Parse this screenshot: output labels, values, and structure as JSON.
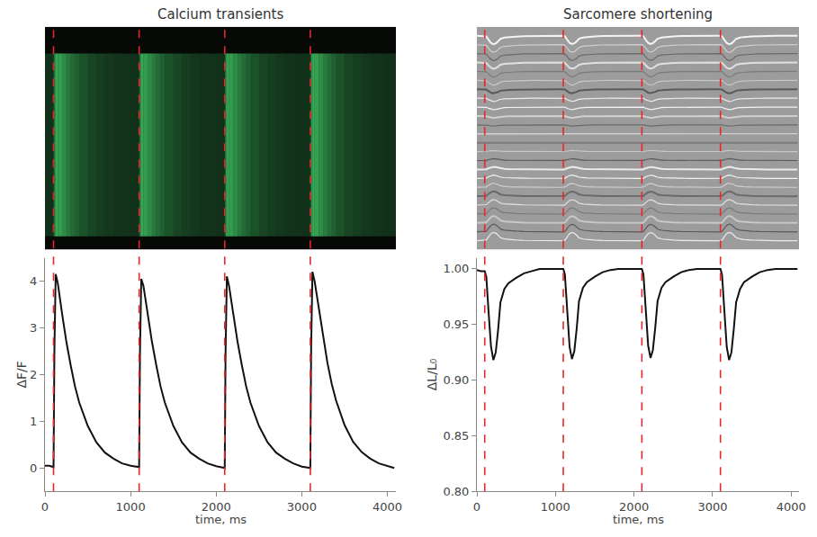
{
  "chart_data": [
    {
      "type": "line",
      "title": "Calcium transients",
      "xlabel": "time, ms",
      "ylabel": "ΔF/F",
      "color": "#111111",
      "x": [
        0,
        50,
        100,
        110,
        125,
        150,
        200,
        250,
        300,
        350,
        400,
        500,
        600,
        700,
        800,
        900,
        1000,
        1080,
        1100,
        1110,
        1125,
        1150,
        1200,
        1250,
        1300,
        1350,
        1400,
        1500,
        1600,
        1700,
        1800,
        1900,
        2000,
        2080,
        2100,
        2110,
        2125,
        2150,
        2200,
        2250,
        2300,
        2350,
        2400,
        2500,
        2600,
        2700,
        2800,
        2900,
        3000,
        3080,
        3100,
        3110,
        3125,
        3150,
        3200,
        3250,
        3300,
        3350,
        3400,
        3500,
        3600,
        3700,
        3800,
        3900,
        4000,
        4080
      ],
      "values": [
        0.05,
        0.05,
        0.02,
        2.5,
        4.15,
        3.95,
        3.3,
        2.7,
        2.2,
        1.75,
        1.4,
        0.9,
        0.55,
        0.33,
        0.2,
        0.1,
        0.05,
        0.02,
        0.02,
        2.5,
        4.05,
        3.9,
        3.3,
        2.7,
        2.2,
        1.75,
        1.4,
        0.9,
        0.55,
        0.33,
        0.2,
        0.1,
        0.04,
        0.0,
        0.0,
        2.5,
        4.1,
        3.9,
        3.3,
        2.7,
        2.2,
        1.75,
        1.4,
        0.9,
        0.55,
        0.33,
        0.2,
        0.1,
        0.03,
        0.0,
        0.0,
        2.6,
        4.2,
        4.0,
        3.4,
        2.8,
        2.25,
        1.8,
        1.45,
        0.92,
        0.56,
        0.34,
        0.2,
        0.1,
        0.04,
        0.0
      ],
      "xlim": [
        0,
        4100
      ],
      "xticks": [
        0,
        1000,
        2000,
        3000,
        4000
      ],
      "ylim": [
        -0.5,
        4.5
      ],
      "yticks": [
        0,
        1,
        2,
        3,
        4
      ],
      "stimuli": {
        "x": [
          100,
          1100,
          2100,
          3100
        ],
        "color": "#e8262a",
        "line_style": "dashed"
      },
      "grid": false
    },
    {
      "type": "line",
      "title": "Sarcomere shortening",
      "xlabel": "time, ms",
      "ylabel": "ΔL/L₀",
      "color": "#111111",
      "x": [
        0,
        50,
        100,
        120,
        150,
        180,
        210,
        240,
        270,
        300,
        350,
        400,
        500,
        600,
        700,
        800,
        1000,
        1080,
        1100,
        1120,
        1150,
        1180,
        1210,
        1240,
        1270,
        1300,
        1350,
        1400,
        1500,
        1600,
        1700,
        1800,
        2000,
        2080,
        2100,
        2120,
        2150,
        2180,
        2210,
        2240,
        2270,
        2300,
        2350,
        2400,
        2500,
        2600,
        2700,
        2800,
        3000,
        3080,
        3100,
        3120,
        3150,
        3180,
        3210,
        3240,
        3270,
        3300,
        3350,
        3400,
        3500,
        3600,
        3700,
        3800,
        4000,
        4080
      ],
      "values": [
        0.999,
        0.998,
        0.998,
        0.993,
        0.96,
        0.93,
        0.918,
        0.925,
        0.945,
        0.97,
        0.982,
        0.987,
        0.992,
        0.996,
        0.998,
        1.0,
        1.0,
        1.0,
        1.0,
        0.995,
        0.96,
        0.93,
        0.919,
        0.926,
        0.946,
        0.971,
        0.983,
        0.988,
        0.993,
        0.997,
        0.999,
        1.0,
        1.0,
        1.0,
        1.0,
        0.995,
        0.96,
        0.931,
        0.92,
        0.927,
        0.947,
        0.971,
        0.983,
        0.988,
        0.993,
        0.997,
        0.999,
        1.0,
        1.0,
        1.0,
        1.0,
        0.995,
        0.96,
        0.93,
        0.918,
        0.925,
        0.946,
        0.97,
        0.982,
        0.988,
        0.993,
        0.997,
        0.999,
        1.0,
        1.0,
        1.0
      ],
      "xlim": [
        0,
        4100
      ],
      "xticks": [
        0,
        1000,
        2000,
        3000,
        4000
      ],
      "ylim": [
        0.8,
        1.01
      ],
      "yticks": [
        {
          "value": 0.8,
          "label": "0.80"
        },
        0.85,
        {
          "value": 0.9,
          "label": "0.90"
        },
        0.95,
        {
          "value": 1.0,
          "label": "1.00"
        }
      ],
      "stimuli": {
        "x": [
          100,
          1100,
          2100,
          3100
        ],
        "color": "#e8262a",
        "line_style": "dashed"
      },
      "grid": false
    }
  ]
}
